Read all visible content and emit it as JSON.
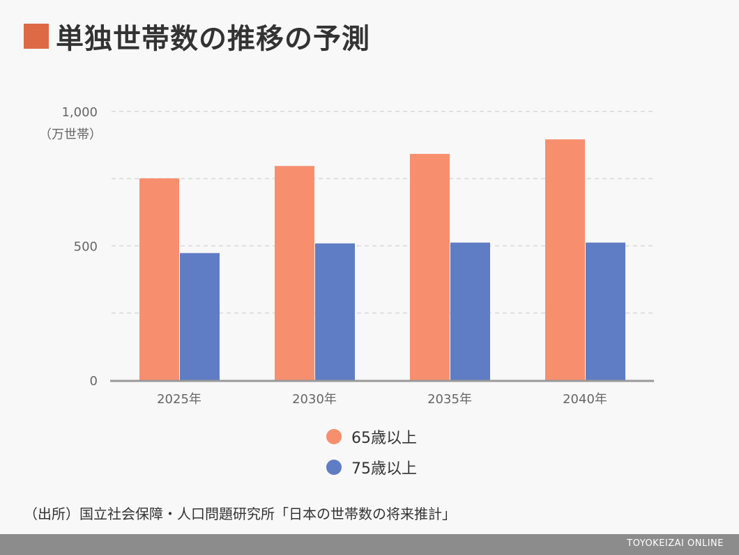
{
  "title": "単独世帯数の推移の予測",
  "colors": {
    "title_marker": "#dd6a44",
    "series_65": "#f78f6e",
    "series_75": "#5f7dc4",
    "grid": "#d8d8d8",
    "axis": "#999999",
    "tick_text": "#666666",
    "footer_bg": "#8c8c8c"
  },
  "chart_data": {
    "type": "bar",
    "categories": [
      "2025年",
      "2030年",
      "2035年",
      "2040年"
    ],
    "series": [
      {
        "name": "65歳以上",
        "values": [
          751,
          797,
          842,
          896
        ]
      },
      {
        "name": "75歳以上",
        "values": [
          473,
          509,
          512,
          512
        ]
      }
    ],
    "ylim": [
      0,
      1000
    ],
    "yticks": [
      {
        "value": 0,
        "label": "0"
      },
      {
        "value": 500,
        "label": "500"
      },
      {
        "value": 1000,
        "label": "1,000"
      }
    ],
    "gridlines": [
      250,
      500,
      750,
      1000
    ],
    "ylabel": "（万世帯）",
    "grid": true,
    "legend_position": "bottom"
  },
  "source": "（出所）国立社会保障・人口問題研究所「日本の世帯数の将来推計」",
  "footer": "TOYOKEIZAI ONLINE"
}
